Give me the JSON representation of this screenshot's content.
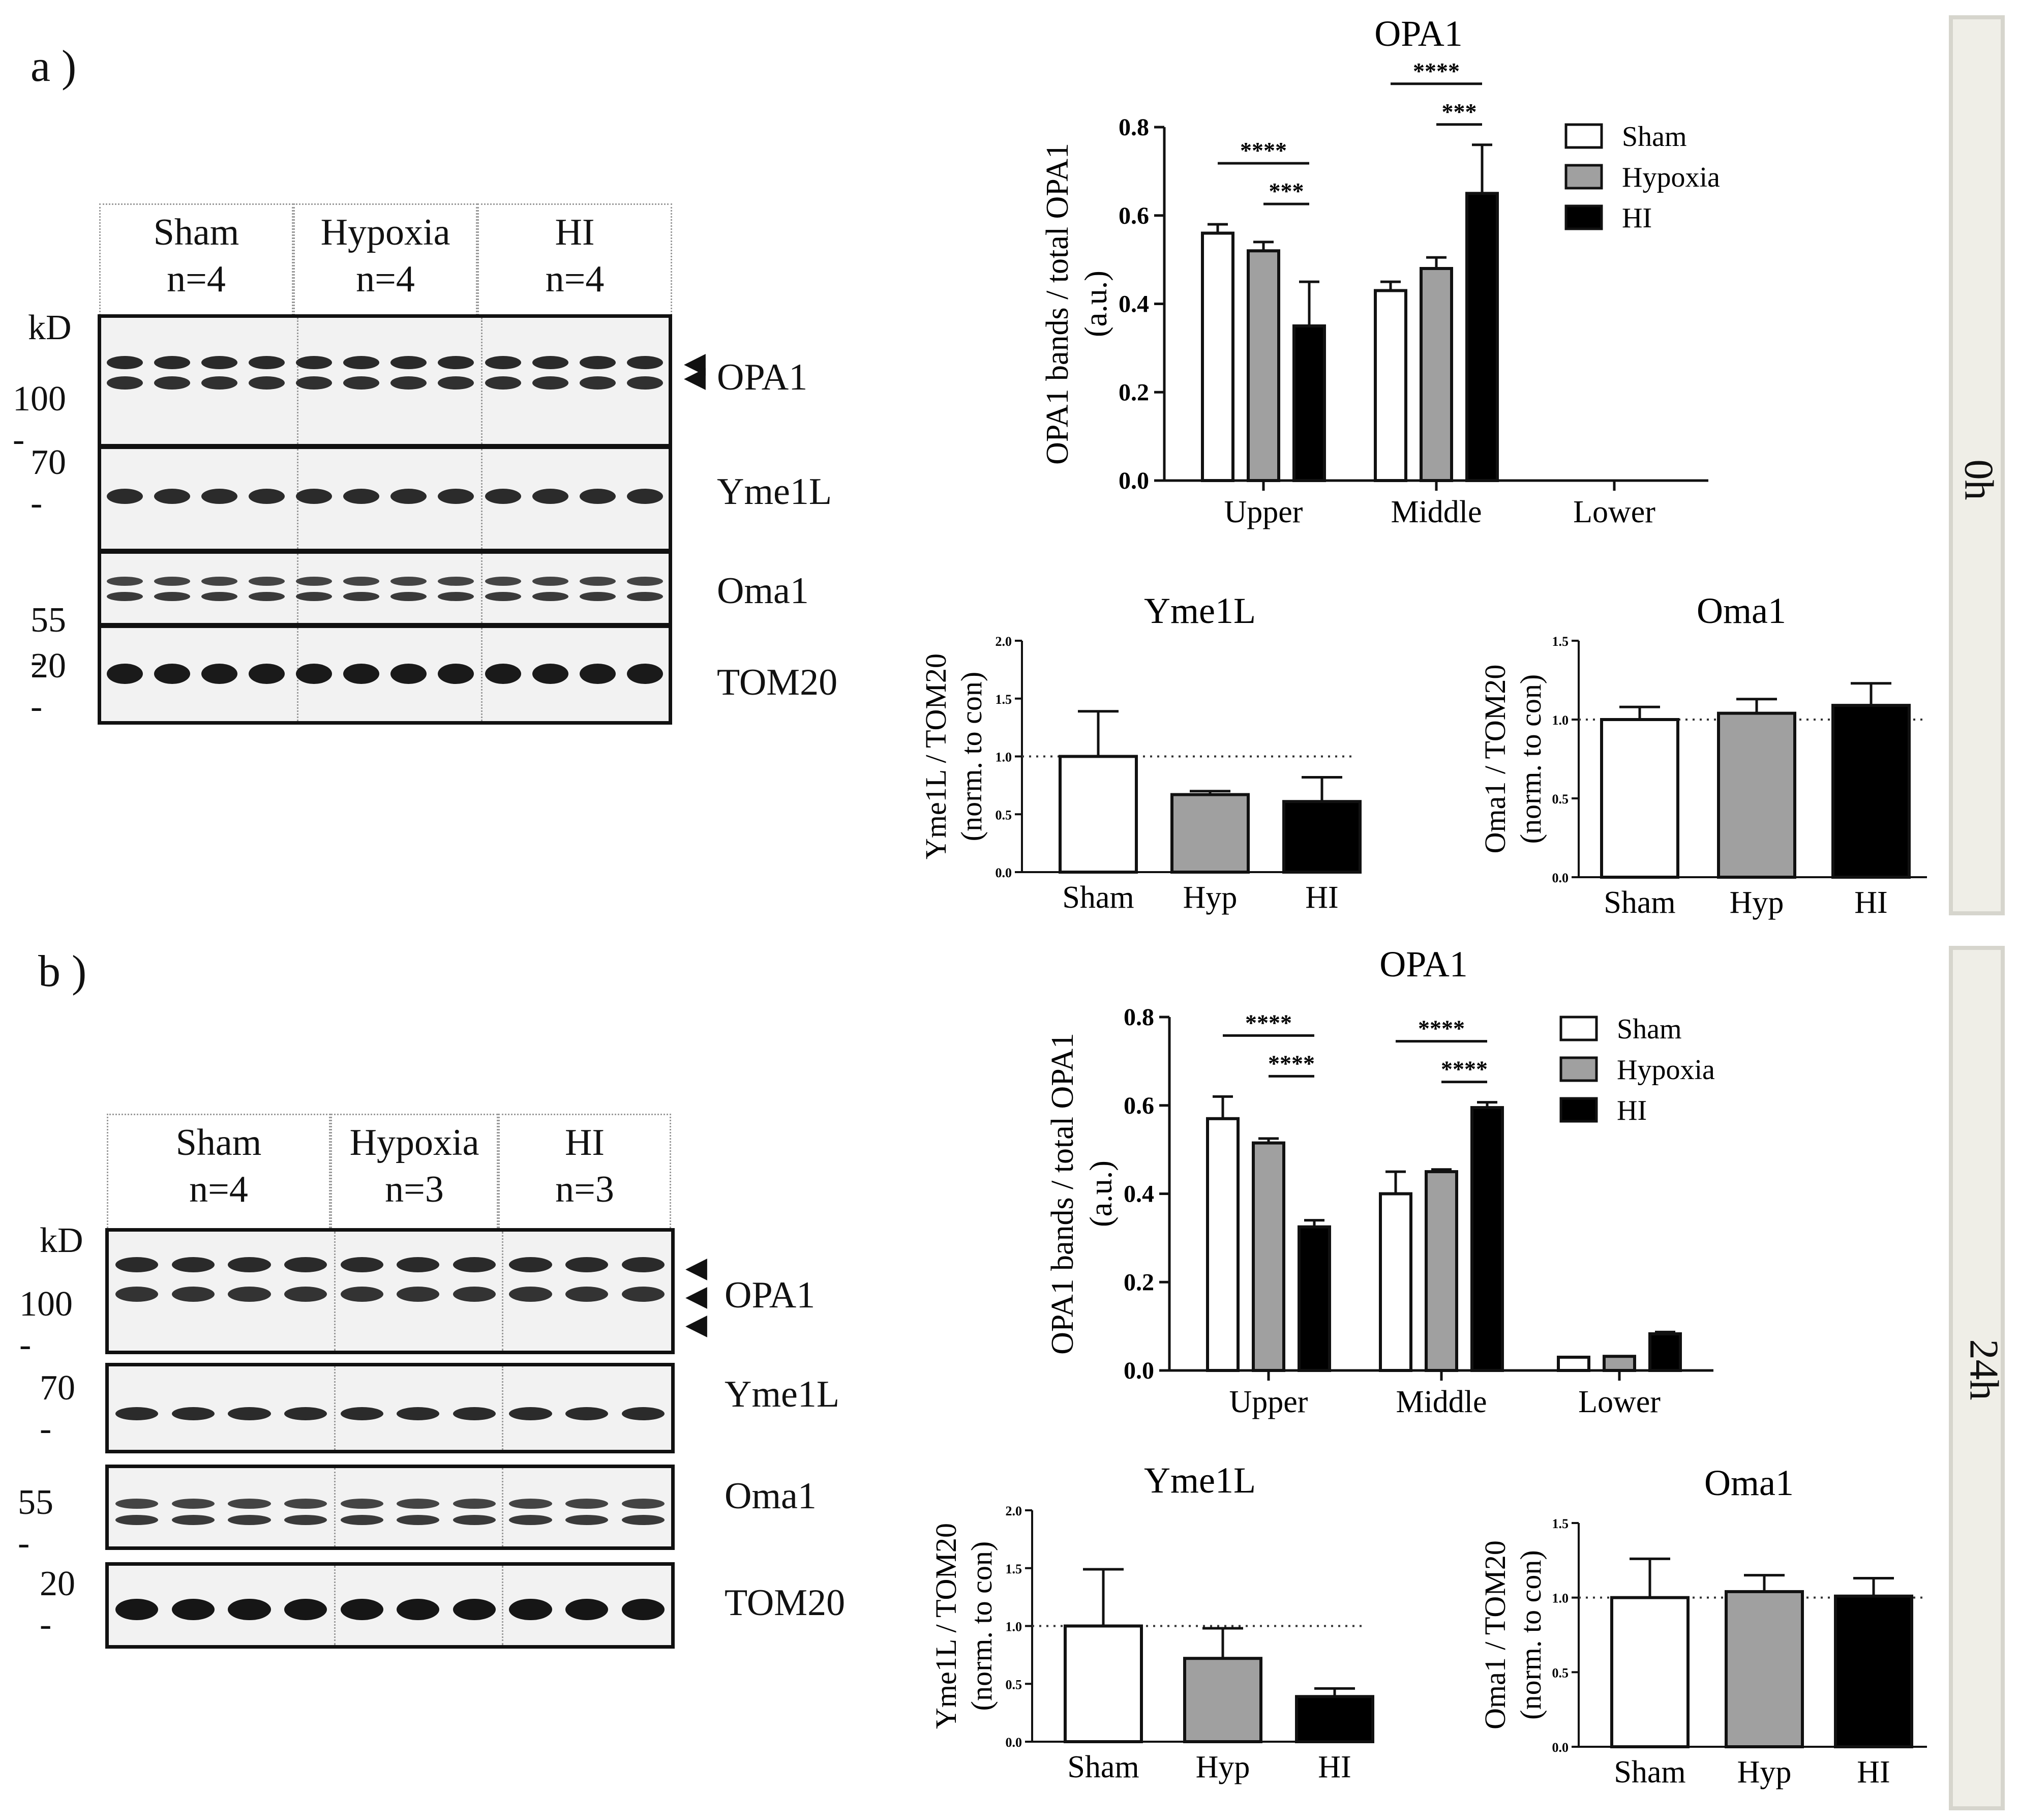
{
  "panels": [
    {
      "letter": "a )",
      "time": "0h",
      "blot": {
        "kd_label": "kD",
        "groups": [
          {
            "name": "Sham",
            "n": "n=4",
            "lanes": 4
          },
          {
            "name": "Hypoxia",
            "n": "n=4",
            "lanes": 4
          },
          {
            "name": "HI",
            "n": "n=4",
            "lanes": 4
          }
        ],
        "markers": [
          "100 -",
          "70 -",
          "55 -",
          "20 -"
        ],
        "proteins": [
          "OPA1",
          "Yme1L",
          "Oma1",
          "TOM20"
        ],
        "opa1_arrowheads": 2
      }
    },
    {
      "letter": "b )",
      "time": "24h",
      "blot": {
        "kd_label": "kD",
        "groups": [
          {
            "name": "Sham",
            "n": "n=4",
            "lanes": 4
          },
          {
            "name": "Hypoxia",
            "n": "n=3",
            "lanes": 3
          },
          {
            "name": "HI",
            "n": "n=3",
            "lanes": 3
          }
        ],
        "markers": [
          "100 -",
          "70 -",
          "55 -",
          "20 -"
        ],
        "proteins": [
          "OPA1",
          "Yme1L",
          "Oma1",
          "TOM20"
        ],
        "opa1_arrowheads": 3
      }
    }
  ],
  "chart_data": [
    {
      "id": "a-opa1",
      "type": "bar",
      "title": "OPA1",
      "ylabel": [
        "OPA1 bands / total OPA1",
        "(a.u.)"
      ],
      "categories": [
        "Upper",
        "Middle",
        "Lower"
      ],
      "ylim": [
        0,
        0.8
      ],
      "yticks": [
        "0.0",
        "0.2",
        "0.4",
        "0.6",
        "0.8"
      ],
      "legend": "top-right",
      "series": [
        {
          "name": "Sham",
          "color": "#ffffff",
          "values": [
            0.56,
            0.43,
            null
          ],
          "errors": [
            0.02,
            0.02,
            null
          ]
        },
        {
          "name": "Hypoxia",
          "color": "#a0a0a0",
          "values": [
            0.52,
            0.48,
            null
          ],
          "errors": [
            0.02,
            0.025,
            null
          ]
        },
        {
          "name": "HI",
          "color": "#000000",
          "values": [
            0.35,
            0.65,
            null
          ],
          "errors": [
            0.1,
            0.11,
            null
          ]
        }
      ],
      "significance": [
        {
          "category": 0,
          "from": 0,
          "to": 2,
          "label": "****"
        },
        {
          "category": 0,
          "from": 1,
          "to": 2,
          "label": "***"
        },
        {
          "category": 1,
          "from": 0,
          "to": 2,
          "label": "****"
        },
        {
          "category": 1,
          "from": 1,
          "to": 2,
          "label": "***"
        }
      ]
    },
    {
      "id": "a-yme1l",
      "type": "bar",
      "title": "Yme1L",
      "ylabel": [
        "Yme1L / TOM20",
        "(norm. to con)"
      ],
      "categories": [
        "Sham",
        "Hyp",
        "HI"
      ],
      "ylim": [
        0,
        2.0
      ],
      "yticks": [
        "0.0",
        "0.5",
        "1.0",
        "1.5",
        "2.0"
      ],
      "reference_line": 1.0,
      "values": [
        1.0,
        0.67,
        0.61
      ],
      "errors": [
        0.39,
        0.03,
        0.21
      ],
      "colors": [
        "#ffffff",
        "#a0a0a0",
        "#000000"
      ]
    },
    {
      "id": "a-oma1",
      "type": "bar",
      "title": "Oma1",
      "ylabel": [
        "Oma1  / TOM20",
        "(norm. to con)"
      ],
      "categories": [
        "Sham",
        "Hyp",
        "HI"
      ],
      "ylim": [
        0,
        1.5
      ],
      "yticks": [
        "0.0",
        "0.5",
        "1.0",
        "1.5"
      ],
      "reference_line": 1.0,
      "values": [
        1.0,
        1.04,
        1.09
      ],
      "errors": [
        0.08,
        0.09,
        0.14
      ],
      "colors": [
        "#ffffff",
        "#a0a0a0",
        "#000000"
      ]
    },
    {
      "id": "b-opa1",
      "type": "bar",
      "title": "OPA1",
      "ylabel": [
        "OPA1 bands / total OPA1",
        "(a.u.)"
      ],
      "categories": [
        "Upper",
        "Middle",
        "Lower"
      ],
      "ylim": [
        0,
        0.8
      ],
      "yticks": [
        "0.0",
        "0.2",
        "0.4",
        "0.6",
        "0.8"
      ],
      "legend": "top-right",
      "series": [
        {
          "name": "Sham",
          "color": "#ffffff",
          "values": [
            0.57,
            0.4,
            0.03
          ],
          "errors": [
            0.05,
            0.05,
            0.0
          ]
        },
        {
          "name": "Hypoxia",
          "color": "#a0a0a0",
          "values": [
            0.515,
            0.45,
            0.032
          ],
          "errors": [
            0.01,
            0.005,
            0.0
          ]
        },
        {
          "name": "HI",
          "color": "#000000",
          "values": [
            0.325,
            0.595,
            0.083
          ],
          "errors": [
            0.015,
            0.012,
            0.004
          ]
        }
      ],
      "significance": [
        {
          "category": 0,
          "from": 0,
          "to": 2,
          "label": "****"
        },
        {
          "category": 0,
          "from": 1,
          "to": 2,
          "label": "****"
        },
        {
          "category": 1,
          "from": 0,
          "to": 2,
          "label": "****"
        },
        {
          "category": 1,
          "from": 1,
          "to": 2,
          "label": "****"
        }
      ]
    },
    {
      "id": "b-yme1l",
      "type": "bar",
      "title": "Yme1L",
      "ylabel": [
        "Yme1L / TOM20",
        "(norm. to con)"
      ],
      "categories": [
        "Sham",
        "Hyp",
        "HI"
      ],
      "ylim": [
        0,
        2.0
      ],
      "yticks": [
        "0.0",
        "0.5",
        "1.0",
        "1.5",
        "2.0"
      ],
      "reference_line": 1.0,
      "values": [
        1.0,
        0.72,
        0.39
      ],
      "errors": [
        0.49,
        0.26,
        0.07
      ],
      "colors": [
        "#ffffff",
        "#a0a0a0",
        "#000000"
      ]
    },
    {
      "id": "b-oma1",
      "type": "bar",
      "title": "Oma1",
      "ylabel": [
        "Oma1  / TOM20",
        "(norm. to con)"
      ],
      "categories": [
        "Sham",
        "Hyp",
        "HI"
      ],
      "ylim": [
        0,
        1.5
      ],
      "yticks": [
        "0.0",
        "0.5",
        "1.0",
        "1.5"
      ],
      "reference_line": 1.0,
      "values": [
        1.0,
        1.04,
        1.01
      ],
      "errors": [
        0.26,
        0.11,
        0.12
      ],
      "colors": [
        "#ffffff",
        "#a0a0a0",
        "#000000"
      ]
    }
  ]
}
